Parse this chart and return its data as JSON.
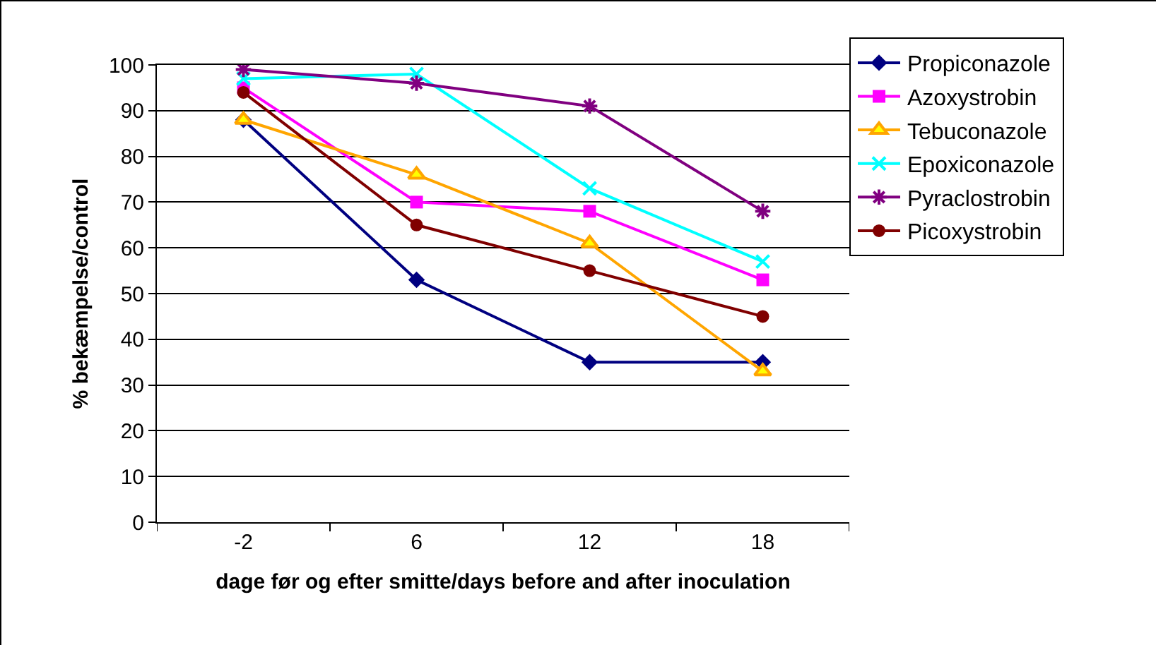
{
  "chart_data": {
    "type": "line",
    "xlabel": "dage før og efter smitte/days before and after inoculation",
    "ylabel": "% bekæmpelse/control",
    "categories": [
      "-2",
      "6",
      "12",
      "18"
    ],
    "ylim": [
      0,
      100
    ],
    "yticks": [
      0,
      10,
      20,
      30,
      40,
      50,
      60,
      70,
      80,
      90,
      100
    ],
    "grid": "y",
    "legend": "top right",
    "series": [
      {
        "name": "Propiconazole",
        "color": "#000080",
        "marker": "diamond",
        "values": [
          88,
          53,
          35,
          35
        ]
      },
      {
        "name": "Azoxystrobin",
        "color": "#ff00ff",
        "marker": "square",
        "values": [
          95,
          70,
          68,
          53
        ]
      },
      {
        "name": "Tebuconazole",
        "color": "#ffa500",
        "marker": "triangle",
        "values": [
          88,
          76,
          61,
          33
        ]
      },
      {
        "name": "Epoxiconazole",
        "color": "#00ffff",
        "marker": "cross",
        "values": [
          97,
          98,
          73,
          57
        ]
      },
      {
        "name": "Pyraclostrobin",
        "color": "#800080",
        "marker": "cross",
        "values": [
          99,
          96,
          91,
          68
        ]
      },
      {
        "name": "Picoxystrobin",
        "color": "#800000",
        "marker": "circle",
        "values": [
          94,
          65,
          55,
          45
        ]
      }
    ]
  }
}
